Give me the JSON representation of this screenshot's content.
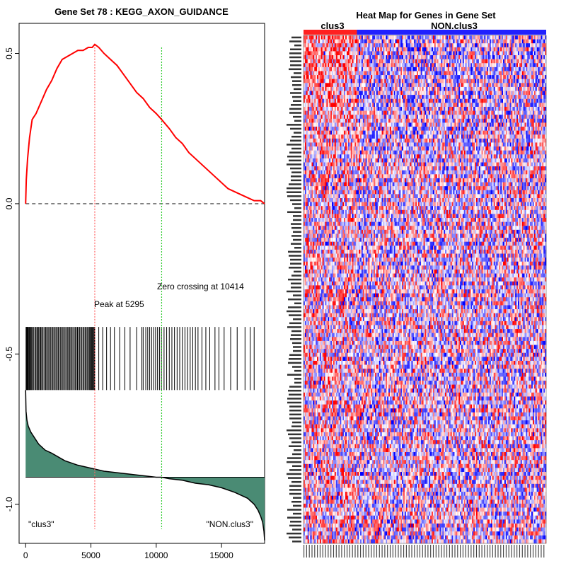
{
  "chart_data": [
    {
      "type": "line",
      "title": "Gene Set  78 : KEGG_AXON_GUIDANCE",
      "xlabel": "",
      "ylabel": "",
      "xlim": [
        -500,
        18300
      ],
      "ylim": [
        -1.13,
        0.6
      ],
      "x_ticks": [
        0,
        5000,
        10000,
        15000
      ],
      "x_tick_labels": [
        "0",
        "5000",
        "10000",
        "15000"
      ],
      "y_ticks": [
        0.5,
        0.0,
        -0.5,
        -1.0
      ],
      "y_tick_labels": [
        "0.5",
        "0.0",
        "-0.5",
        "-1.0"
      ],
      "series": [
        {
          "color": "#ff0000",
          "x": [
            0,
            50,
            150,
            300,
            500,
            800,
            1200,
            1600,
            2000,
            2400,
            2800,
            3200,
            3600,
            4000,
            4400,
            4800,
            5100,
            5295,
            5600,
            6000,
            6500,
            7000,
            7500,
            8000,
            8500,
            9000,
            9500,
            10000,
            10414,
            11000,
            11500,
            12000,
            12500,
            13000,
            13500,
            14000,
            14500,
            15000,
            15500,
            16000,
            16500,
            17000,
            17500,
            18000,
            18300
          ],
          "y": [
            0.0,
            0.08,
            0.15,
            0.22,
            0.28,
            0.3,
            0.34,
            0.38,
            0.41,
            0.45,
            0.48,
            0.49,
            0.5,
            0.51,
            0.51,
            0.52,
            0.52,
            0.53,
            0.52,
            0.5,
            0.48,
            0.46,
            0.43,
            0.4,
            0.37,
            0.35,
            0.32,
            0.3,
            0.28,
            0.25,
            0.22,
            0.2,
            0.17,
            0.15,
            0.13,
            0.11,
            0.09,
            0.07,
            0.05,
            0.04,
            0.03,
            0.02,
            0.01,
            0.01,
            0.0
          ]
        }
      ],
      "baseline": 0.0,
      "baseline_color": "#333333",
      "peak_x": 5295,
      "peak_color": "#ff6666",
      "zero_crossing_x": 10414,
      "zero_color": "#33cc33",
      "annotations": [
        "Peak at 5295",
        "Zero crossing at 10414"
      ],
      "hit_ymin": -0.62,
      "hit_ymax": -0.41,
      "hit_positions": [
        30,
        60,
        100,
        130,
        180,
        220,
        280,
        330,
        400,
        460,
        520,
        600,
        700,
        780,
        860,
        930,
        1000,
        1080,
        1150,
        1230,
        1300,
        1400,
        1500,
        1560,
        1650,
        1730,
        1820,
        1900,
        1990,
        2080,
        2160,
        2250,
        2330,
        2420,
        2500,
        2580,
        2680,
        2760,
        2850,
        2930,
        3020,
        3100,
        3200,
        3280,
        3370,
        3450,
        3540,
        3620,
        3720,
        3800,
        3890,
        3970,
        4060,
        4140,
        4230,
        4310,
        4400,
        4480,
        4570,
        4650,
        4740,
        4820,
        4900,
        4960,
        5020,
        5080,
        5140,
        5200,
        5260,
        5295,
        5600,
        5900,
        6200,
        6500,
        6800,
        7200,
        7600,
        8000,
        8500,
        8900,
        9000,
        9200,
        9350,
        9500,
        9650,
        9800,
        9950,
        10100,
        10250,
        10400,
        10600,
        10800,
        11000,
        11200,
        11400,
        11600,
        11800,
        12000,
        12200,
        12400,
        12600,
        12800,
        13000,
        13200,
        13500,
        13800,
        14100,
        14500,
        14800,
        15200,
        15700,
        16200,
        16800,
        17200,
        17500
      ],
      "ranked_fill_color": "#4a8b74",
      "ranked_metric": {
        "x": [
          0,
          30,
          100,
          200,
          400,
          700,
          1000,
          1500,
          2000,
          3000,
          4000,
          5000,
          6000,
          7000,
          8000,
          9000,
          10000,
          10414,
          11000,
          12000,
          13000,
          14000,
          15000,
          16000,
          17000,
          17500,
          17800,
          18000,
          18150,
          18250,
          18300
        ],
        "y": [
          -0.62,
          -0.69,
          -0.72,
          -0.74,
          -0.76,
          -0.78,
          -0.8,
          -0.82,
          -0.83,
          -0.855,
          -0.87,
          -0.88,
          -0.89,
          -0.895,
          -0.9,
          -0.905,
          -0.91,
          -0.91,
          -0.915,
          -0.92,
          -0.93,
          -0.935,
          -0.945,
          -0.96,
          -0.98,
          -1.0,
          -1.02,
          -1.04,
          -1.06,
          -1.09,
          -1.12
        ]
      },
      "ranked_baseline": -0.91,
      "left_label": "\"clus3\"",
      "right_label": "\"NON.clus3\""
    },
    {
      "type": "heatmap",
      "title": "Heat Map for Genes in Gene Set",
      "groups": [
        {
          "name": "clus3",
          "color": "#ff2020",
          "fraction": 0.22
        },
        {
          "name": "NON.clus3",
          "color": "#2020ff",
          "fraction": 0.78
        }
      ],
      "n_rows": 128,
      "n_cols": 180,
      "low_color": "#0000ff",
      "mid_color": "#ffffff",
      "high_color": "#ff0000"
    }
  ]
}
